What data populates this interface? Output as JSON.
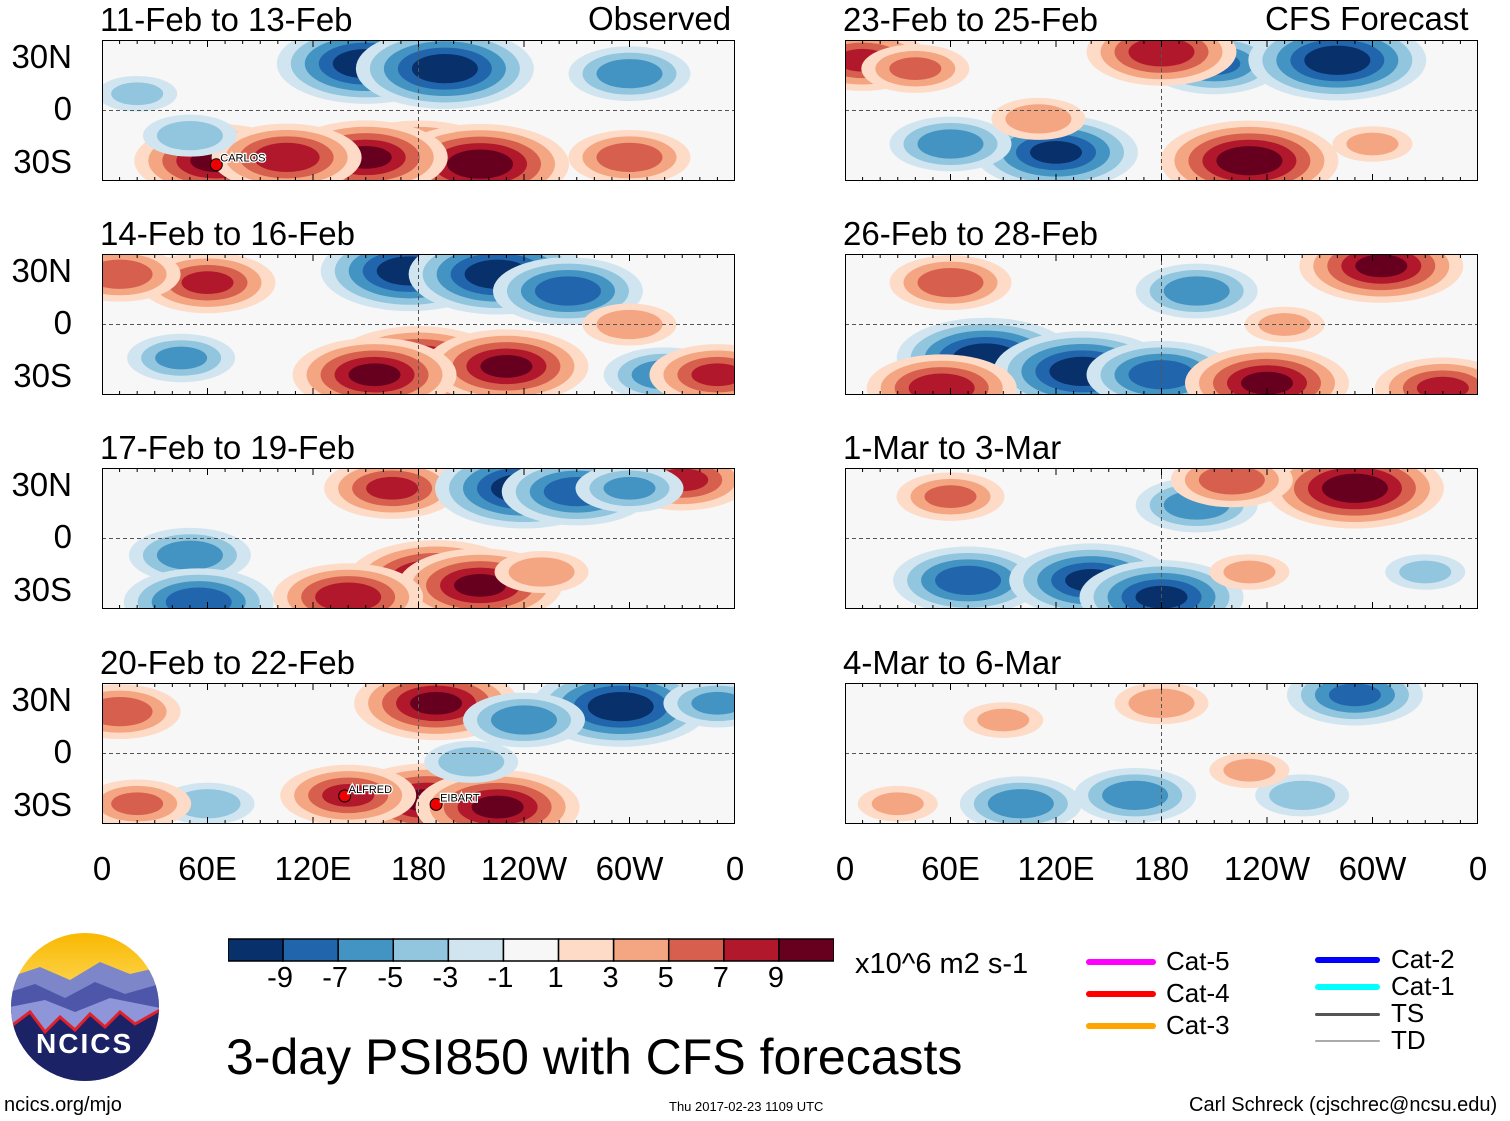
{
  "header": {
    "left_label": "Observed",
    "right_label": "CFS Forecast"
  },
  "axes": {
    "lat_ticks": [
      "30N",
      "0",
      "30S"
    ],
    "lon_ticks": [
      "0",
      "60E",
      "120E",
      "180",
      "120W",
      "60W",
      "0"
    ]
  },
  "colorbar": {
    "labels": [
      "-9",
      "-7",
      "-5",
      "-3",
      "-1",
      "1",
      "3",
      "5",
      "7",
      "9"
    ],
    "colors": [
      "#08306b",
      "#2166ac",
      "#4393c3",
      "#92c5de",
      "#d1e5f0",
      "#f7f7f7",
      "#fddbc7",
      "#f4a582",
      "#d6604d",
      "#b2182b",
      "#67001f"
    ],
    "units": "x10^6 m2 s-1"
  },
  "title": "3-day PSI850 with CFS forecasts",
  "logo": {
    "text": "NCICS"
  },
  "footer": {
    "url": "ncics.org/mjo",
    "timestamp": "Thu 2017-02-23 1109 UTC",
    "author": "Carl Schreck (cjschrec@ncsu.edu)"
  },
  "storm_legend": [
    {
      "label": "Cat-5",
      "color": "#ff00ff"
    },
    {
      "label": "Cat-4",
      "color": "#ff0000"
    },
    {
      "label": "Cat-3",
      "color": "#ffa500"
    },
    {
      "label": "Cat-2",
      "color": "#0000ff"
    },
    {
      "label": "Cat-1",
      "color": "#00ffff"
    },
    {
      "label": "TS",
      "color": "#555555"
    },
    {
      "label": "TD",
      "color": "#aaaaaa"
    }
  ],
  "chart_data": [
    {
      "type": "heatmap",
      "title": "11-Feb to 13-Feb",
      "source": "Observed",
      "lon_range": [
        0,
        360
      ],
      "lat_range": [
        -40,
        40
      ],
      "storms": [
        {
          "name": "CARLOS",
          "lon": 65,
          "lat": -30
        }
      ],
      "anomaly_centers": [
        [
          150,
          28,
          -10
        ],
        [
          195,
          25,
          -10
        ],
        [
          300,
          22,
          -6
        ],
        [
          180,
          -30,
          10
        ],
        [
          215,
          -32,
          10
        ],
        [
          150,
          -28,
          9
        ],
        [
          65,
          -30,
          9
        ],
        [
          105,
          -28,
          8
        ],
        [
          300,
          -28,
          6
        ],
        [
          50,
          -15,
          -4
        ],
        [
          20,
          10,
          -3
        ]
      ]
    },
    {
      "type": "heatmap",
      "title": "14-Feb to 16-Feb",
      "source": "Observed",
      "lon_range": [
        0,
        360
      ],
      "lat_range": [
        -40,
        40
      ],
      "storms": [],
      "anomaly_centers": [
        [
          175,
          32,
          -10
        ],
        [
          225,
          30,
          -10
        ],
        [
          265,
          20,
          -8
        ],
        [
          60,
          25,
          7
        ],
        [
          10,
          30,
          6
        ],
        [
          180,
          -25,
          10
        ],
        [
          230,
          -25,
          9
        ],
        [
          155,
          -30,
          9
        ],
        [
          45,
          -20,
          -5
        ],
        [
          320,
          -30,
          -6
        ],
        [
          350,
          -30,
          7
        ],
        [
          300,
          0,
          4
        ]
      ]
    },
    {
      "type": "heatmap",
      "title": "17-Feb to 19-Feb",
      "source": "Observed",
      "lon_range": [
        0,
        360
      ],
      "lat_range": [
        -40,
        40
      ],
      "storms": [],
      "anomaly_centers": [
        [
          165,
          30,
          7
        ],
        [
          240,
          30,
          -10
        ],
        [
          270,
          28,
          -8
        ],
        [
          50,
          -10,
          -6
        ],
        [
          190,
          -25,
          10
        ],
        [
          215,
          -28,
          9
        ],
        [
          140,
          -35,
          8
        ],
        [
          55,
          -38,
          -8
        ],
        [
          330,
          35,
          7
        ],
        [
          300,
          30,
          -5
        ],
        [
          250,
          -20,
          4
        ]
      ]
    },
    {
      "type": "heatmap",
      "title": "20-Feb to 22-Feb",
      "source": "Observed",
      "lon_range": [
        0,
        360
      ],
      "lat_range": [
        -40,
        40
      ],
      "storms": [
        {
          "name": "ALFRED",
          "lon": 138,
          "lat": -23
        },
        {
          "name": "EIBART",
          "lon": 190,
          "lat": -28
        }
      ],
      "anomaly_centers": [
        [
          190,
          30,
          9
        ],
        [
          295,
          28,
          -10
        ],
        [
          240,
          20,
          -6
        ],
        [
          10,
          25,
          6
        ],
        [
          185,
          -28,
          9
        ],
        [
          225,
          -32,
          9
        ],
        [
          140,
          -25,
          7
        ],
        [
          60,
          -30,
          -4
        ],
        [
          210,
          -5,
          -4
        ],
        [
          350,
          30,
          -5
        ],
        [
          20,
          -30,
          5
        ]
      ]
    },
    {
      "type": "heatmap",
      "title": "23-Feb to 25-Feb",
      "source": "CFS Forecast",
      "lon_range": [
        0,
        360
      ],
      "lat_range": [
        -40,
        40
      ],
      "storms": [],
      "anomaly_centers": [
        [
          10,
          30,
          7
        ],
        [
          40,
          25,
          5
        ],
        [
          210,
          28,
          -7
        ],
        [
          280,
          30,
          -10
        ],
        [
          180,
          35,
          8
        ],
        [
          230,
          -30,
          10
        ],
        [
          120,
          -25,
          -9
        ],
        [
          60,
          -20,
          -6
        ],
        [
          110,
          -5,
          4
        ],
        [
          300,
          -20,
          3
        ]
      ]
    },
    {
      "type": "heatmap",
      "title": "26-Feb to 28-Feb",
      "source": "CFS Forecast",
      "lon_range": [
        0,
        360
      ],
      "lat_range": [
        -40,
        40
      ],
      "storms": [],
      "anomaly_centers": [
        [
          305,
          35,
          9
        ],
        [
          200,
          20,
          -6
        ],
        [
          60,
          25,
          6
        ],
        [
          80,
          -20,
          -10
        ],
        [
          135,
          -28,
          -10
        ],
        [
          180,
          -30,
          -8
        ],
        [
          240,
          -35,
          9
        ],
        [
          55,
          -38,
          8
        ],
        [
          340,
          -38,
          7
        ],
        [
          250,
          0,
          3
        ]
      ]
    },
    {
      "type": "heatmap",
      "title": "1-Mar to 3-Mar",
      "source": "CFS Forecast",
      "lon_range": [
        0,
        360
      ],
      "lat_range": [
        -40,
        40
      ],
      "storms": [],
      "anomaly_centers": [
        [
          290,
          30,
          10
        ],
        [
          200,
          20,
          -6
        ],
        [
          220,
          35,
          6
        ],
        [
          60,
          25,
          5
        ],
        [
          70,
          -25,
          -8
        ],
        [
          140,
          -25,
          -9
        ],
        [
          180,
          -35,
          -9
        ],
        [
          230,
          -20,
          3
        ],
        [
          330,
          -20,
          -3
        ]
      ]
    },
    {
      "type": "heatmap",
      "title": "4-Mar to 6-Mar",
      "source": "CFS Forecast",
      "lon_range": [
        0,
        360
      ],
      "lat_range": [
        -40,
        40
      ],
      "storms": [],
      "anomaly_centers": [
        [
          290,
          35,
          -7
        ],
        [
          180,
          30,
          4
        ],
        [
          90,
          20,
          3
        ],
        [
          100,
          -30,
          -6
        ],
        [
          165,
          -25,
          -6
        ],
        [
          260,
          -25,
          -4
        ],
        [
          230,
          -10,
          3
        ],
        [
          30,
          -30,
          3
        ]
      ]
    }
  ]
}
